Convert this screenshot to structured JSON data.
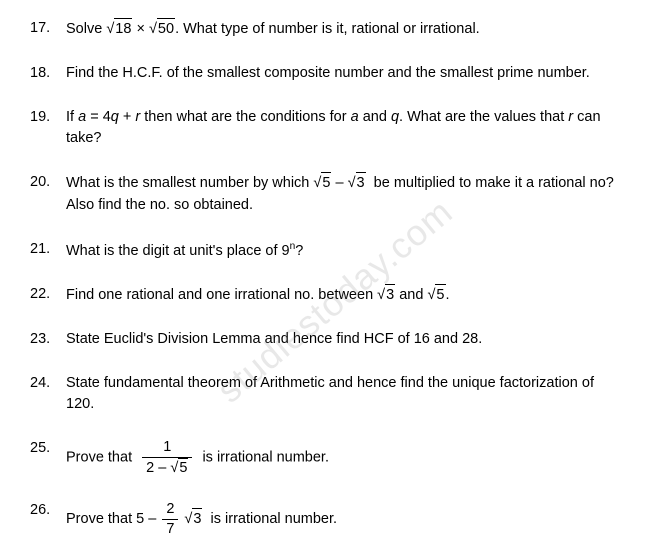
{
  "watermark": "studiestoday.com",
  "questions": [
    {
      "num": "17.",
      "html": "Solve <span class='sqrt'><span class='sqrt-sign'>√</span><span class='sqrt-content'>18</span></span> × <span class='sqrt'><span class='sqrt-sign'>√</span><span class='sqrt-content'>50</span></span>. What type of number is it, rational or irrational."
    },
    {
      "num": "18.",
      "html": "Find the H.C.F. of the smallest composite number and the smallest prime number."
    },
    {
      "num": "19.",
      "html": "If <span class='italic'>a</span> = 4<span class='italic'>q</span> + <span class='italic'>r</span> then what are the conditions for <span class='italic'>a</span> and <span class='italic'>q</span>. What are the values that <span class='italic'>r</span> can take?"
    },
    {
      "num": "20.",
      "html": "What is the smallest number by which <span class='sqrt'><span class='sqrt-sign'>√</span><span class='sqrt-content'>5</span></span> – <span class='sqrt'><span class='sqrt-sign'>√</span><span class='sqrt-content'>3</span></span>&nbsp; be multiplied to make it a rational no? Also find the no. so obtained."
    },
    {
      "num": "21.",
      "html": "What is the digit at unit's place of 9<sup>n</sup>?"
    },
    {
      "num": "22.",
      "html": "Find one rational and one irrational no. between <span class='sqrt'><span class='sqrt-sign'>√</span><span class='sqrt-content'>3</span></span> and <span class='sqrt'><span class='sqrt-sign'>√</span><span class='sqrt-content'>5</span></span>."
    },
    {
      "num": "23.",
      "html": "State Euclid's Division Lemma and hence find HCF of 16 and 28."
    },
    {
      "num": "24.",
      "html": "State fundamental theorem of Arithmetic and hence find the unique factorization of 120."
    },
    {
      "num": "25.",
      "html": "Prove that&nbsp; <span class='frac'><span class='frac-num'>1</span><span class='frac-den'>2 – <span class='sqrt'><span class='sqrt-sign'>√</span><span class='sqrt-content'>5</span></span></span></span>&nbsp; is irrational number."
    },
    {
      "num": "26.",
      "html": "Prove that 5 – <span class='frac'><span class='frac-num'>2</span><span class='frac-den'>7</span></span> <span class='sqrt'><span class='sqrt-sign'>√</span><span class='sqrt-content'>3</span></span>&nbsp; is irrational number."
    }
  ],
  "text_color": "#000000",
  "background_color": "#ffffff",
  "font_size": 14.5,
  "watermark_color": "rgba(128,128,128,0.18)"
}
